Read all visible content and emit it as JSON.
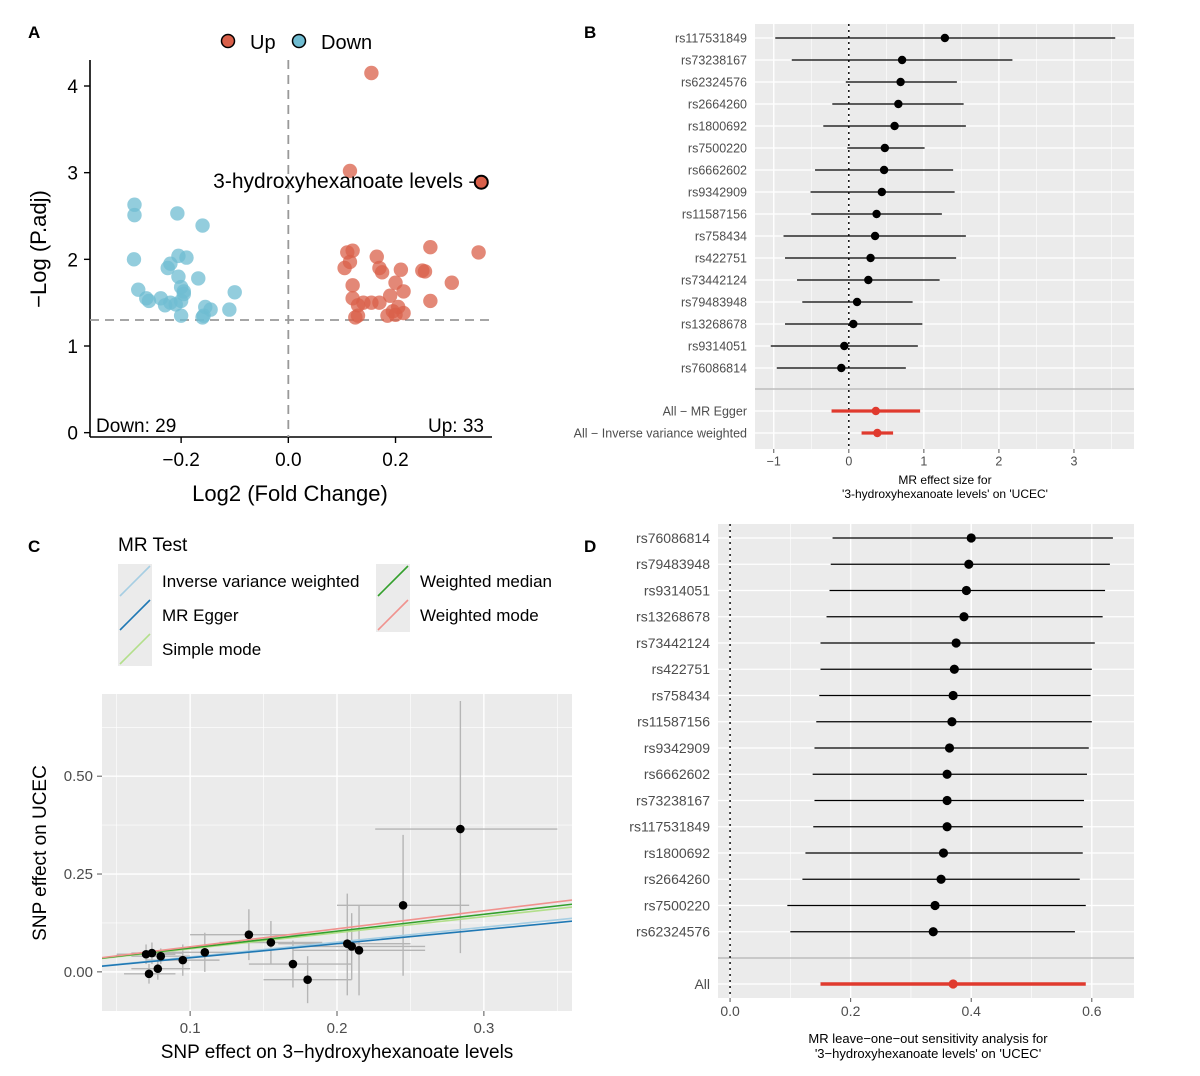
{
  "colors": {
    "up": "#d9604a",
    "down": "#6fbcd1",
    "panel_bg": "#ebebeb",
    "grid": "#ffffff",
    "point": "#000000",
    "summary": "#e03a2e",
    "axis_text": "#4d4d4d",
    "ivw": "#a6cee3",
    "egger": "#1f78b4",
    "simple_mode": "#b2df8a",
    "wmedian": "#33a02c",
    "wmode": "#f0928e",
    "errorbar": "#b5b5b5"
  },
  "panels": {
    "A": {
      "tag": "A",
      "legend": [
        {
          "label": "Up",
          "color_key": "up"
        },
        {
          "label": "Down",
          "color_key": "down"
        }
      ],
      "down_count": "Down: 29",
      "up_count": "Up: 33",
      "highlight_label": "3-hydroxyhexanoate levels"
    },
    "B": {
      "tag": "B"
    },
    "C": {
      "tag": "C",
      "legend_title": "MR Test",
      "legend": [
        {
          "label": "Inverse variance weighted",
          "color_key": "ivw"
        },
        {
          "label": "MR Egger",
          "color_key": "egger"
        },
        {
          "label": "Simple mode",
          "color_key": "simple_mode"
        },
        {
          "label": "Weighted median",
          "color_key": "wmedian"
        },
        {
          "label": "Weighted mode",
          "color_key": "wmode"
        }
      ]
    },
    "D": {
      "tag": "D"
    }
  },
  "chart_data": [
    {
      "panel": "A",
      "type": "scatter",
      "xlabel": "Log2 (Fold Change)",
      "ylabel": "−Log (P.adj)",
      "xlim": [
        -0.37,
        0.38
      ],
      "ylim": [
        -0.05,
        4.3
      ],
      "xticks": [
        {
          "v": -0.2,
          "label": "−0.2"
        },
        {
          "v": 0.0,
          "label": "0.0"
        },
        {
          "v": 0.2,
          "label": "0.2"
        }
      ],
      "yticks": [
        {
          "v": 0,
          "label": "0"
        },
        {
          "v": 1,
          "label": "1"
        },
        {
          "v": 2,
          "label": "2"
        },
        {
          "v": 3,
          "label": "3"
        },
        {
          "v": 4,
          "label": "4"
        }
      ],
      "vline": 0.0,
      "hline": 1.3,
      "highlight": {
        "x": 0.36,
        "y": 2.89
      },
      "series": [
        {
          "name": "Up",
          "color_key": "up",
          "points": [
            [
              0.155,
              4.15
            ],
            [
              0.115,
              3.02
            ],
            [
              0.11,
              2.08
            ],
            [
              0.12,
              2.1
            ],
            [
              0.36,
              2.89
            ],
            [
              0.355,
              2.08
            ],
            [
              0.265,
              2.14
            ],
            [
              0.105,
              1.9
            ],
            [
              0.115,
              1.97
            ],
            [
              0.165,
              2.03
            ],
            [
              0.17,
              1.9
            ],
            [
              0.21,
              1.88
            ],
            [
              0.175,
              1.85
            ],
            [
              0.25,
              1.87
            ],
            [
              0.255,
              1.86
            ],
            [
              0.305,
              1.73
            ],
            [
              0.12,
              1.7
            ],
            [
              0.2,
              1.73
            ],
            [
              0.215,
              1.63
            ],
            [
              0.12,
              1.55
            ],
            [
              0.19,
              1.58
            ],
            [
              0.14,
              1.5
            ],
            [
              0.155,
              1.5
            ],
            [
              0.13,
              1.47
            ],
            [
              0.17,
              1.5
            ],
            [
              0.205,
              1.45
            ],
            [
              0.265,
              1.52
            ],
            [
              0.13,
              1.35
            ],
            [
              0.125,
              1.33
            ],
            [
              0.185,
              1.35
            ],
            [
              0.195,
              1.4
            ],
            [
              0.215,
              1.38
            ],
            [
              0.2,
              1.36
            ]
          ]
        },
        {
          "name": "Down",
          "color_key": "down",
          "points": [
            [
              -0.287,
              2.63
            ],
            [
              -0.287,
              2.51
            ],
            [
              -0.207,
              2.53
            ],
            [
              -0.16,
              2.39
            ],
            [
              -0.288,
              2.0
            ],
            [
              -0.205,
              2.04
            ],
            [
              -0.19,
              2.02
            ],
            [
              -0.22,
              1.95
            ],
            [
              -0.225,
              1.9
            ],
            [
              -0.205,
              1.8
            ],
            [
              -0.168,
              1.78
            ],
            [
              -0.2,
              1.68
            ],
            [
              -0.28,
              1.65
            ],
            [
              -0.195,
              1.6
            ],
            [
              -0.195,
              1.63
            ],
            [
              -0.1,
              1.62
            ],
            [
              -0.265,
              1.55
            ],
            [
              -0.26,
              1.52
            ],
            [
              -0.238,
              1.55
            ],
            [
              -0.22,
              1.5
            ],
            [
              -0.23,
              1.47
            ],
            [
              -0.21,
              1.48
            ],
            [
              -0.2,
              1.52
            ],
            [
              -0.155,
              1.45
            ],
            [
              -0.145,
              1.42
            ],
            [
              -0.11,
              1.42
            ],
            [
              -0.2,
              1.35
            ],
            [
              -0.16,
              1.33
            ],
            [
              -0.158,
              1.35
            ]
          ]
        }
      ]
    },
    {
      "panel": "B",
      "type": "forest",
      "xlabel": "MR effect size for\n'3-hydroxyhexanoate levels' on 'UCEC'",
      "xlim": [
        -1.25,
        3.8
      ],
      "xticks": [
        {
          "v": -1,
          "label": "−1"
        },
        {
          "v": 0,
          "label": "0"
        },
        {
          "v": 1,
          "label": "1"
        },
        {
          "v": 2,
          "label": "2"
        },
        {
          "v": 3,
          "label": "3"
        }
      ],
      "refline": 0,
      "rows": [
        {
          "label": "rs117531849",
          "est": 1.28,
          "lo": -0.98,
          "hi": 3.55
        },
        {
          "label": "rs73238167",
          "est": 0.71,
          "lo": -0.76,
          "hi": 2.18
        },
        {
          "label": "rs62324576",
          "est": 0.69,
          "lo": -0.04,
          "hi": 1.44
        },
        {
          "label": "rs2664260",
          "est": 0.66,
          "lo": -0.22,
          "hi": 1.53
        },
        {
          "label": "rs1800692",
          "est": 0.61,
          "lo": -0.34,
          "hi": 1.56
        },
        {
          "label": "rs7500220",
          "est": 0.48,
          "lo": -0.02,
          "hi": 1.01
        },
        {
          "label": "rs6662602",
          "est": 0.47,
          "lo": -0.45,
          "hi": 1.39
        },
        {
          "label": "rs9342909",
          "est": 0.44,
          "lo": -0.51,
          "hi": 1.41
        },
        {
          "label": "rs11587156",
          "est": 0.37,
          "lo": -0.5,
          "hi": 1.24
        },
        {
          "label": "rs758434",
          "est": 0.35,
          "lo": -0.87,
          "hi": 1.56
        },
        {
          "label": "rs422751",
          "est": 0.29,
          "lo": -0.85,
          "hi": 1.43
        },
        {
          "label": "rs73442124",
          "est": 0.26,
          "lo": -0.69,
          "hi": 1.21
        },
        {
          "label": "rs79483948",
          "est": 0.11,
          "lo": -0.62,
          "hi": 0.85
        },
        {
          "label": "rs13268678",
          "est": 0.06,
          "lo": -0.85,
          "hi": 0.98
        },
        {
          "label": "rs9314051",
          "est": -0.06,
          "lo": -1.04,
          "hi": 0.92
        },
        {
          "label": "rs76086814",
          "est": -0.1,
          "lo": -0.96,
          "hi": 0.76
        }
      ],
      "summary": [
        {
          "label": "All − MR Egger",
          "est": 0.36,
          "lo": -0.23,
          "hi": 0.95
        },
        {
          "label": "All − Inverse variance weighted",
          "est": 0.38,
          "lo": 0.17,
          "hi": 0.59
        }
      ]
    },
    {
      "panel": "C",
      "type": "scatter",
      "xlabel": "SNP effect on 3−hydroxyhexanoate levels",
      "ylabel": "SNP effect on UCEC",
      "xlim": [
        0.04,
        0.36
      ],
      "ylim": [
        -0.1,
        0.71
      ],
      "xticks": [
        {
          "v": 0.1,
          "label": "0.1"
        },
        {
          "v": 0.2,
          "label": "0.2"
        },
        {
          "v": 0.3,
          "label": "0.3"
        }
      ],
      "yticks": [
        {
          "v": 0.0,
          "label": "0.00"
        },
        {
          "v": 0.25,
          "label": "0.25"
        },
        {
          "v": 0.5,
          "label": "0.50"
        }
      ],
      "points": [
        {
          "x": 0.284,
          "y": 0.365,
          "xlo": 0.226,
          "xhi": 0.35,
          "ylo": 0.048,
          "yhi": 0.692
        },
        {
          "x": 0.245,
          "y": 0.17,
          "xlo": 0.2,
          "xhi": 0.29,
          "ylo": -0.01,
          "yhi": 0.35
        },
        {
          "x": 0.14,
          "y": 0.095,
          "xlo": 0.1,
          "xhi": 0.18,
          "ylo": 0.03,
          "yhi": 0.16
        },
        {
          "x": 0.155,
          "y": 0.075,
          "xlo": 0.12,
          "xhi": 0.19,
          "ylo": 0.02,
          "yhi": 0.13
        },
        {
          "x": 0.207,
          "y": 0.072,
          "xlo": 0.16,
          "xhi": 0.25,
          "ylo": -0.06,
          "yhi": 0.2
        },
        {
          "x": 0.21,
          "y": 0.065,
          "xlo": 0.17,
          "xhi": 0.26,
          "ylo": -0.02,
          "yhi": 0.15
        },
        {
          "x": 0.215,
          "y": 0.055,
          "xlo": 0.17,
          "xhi": 0.26,
          "ylo": -0.06,
          "yhi": 0.17
        },
        {
          "x": 0.17,
          "y": 0.02,
          "xlo": 0.14,
          "xhi": 0.21,
          "ylo": -0.04,
          "yhi": 0.08
        },
        {
          "x": 0.18,
          "y": -0.02,
          "xlo": 0.15,
          "xhi": 0.21,
          "ylo": -0.08,
          "yhi": 0.04
        },
        {
          "x": 0.11,
          "y": 0.05,
          "xlo": 0.08,
          "xhi": 0.14,
          "ylo": 0.0,
          "yhi": 0.1
        },
        {
          "x": 0.095,
          "y": 0.03,
          "xlo": 0.07,
          "xhi": 0.12,
          "ylo": -0.01,
          "yhi": 0.07
        },
        {
          "x": 0.07,
          "y": 0.045,
          "xlo": 0.05,
          "xhi": 0.09,
          "ylo": 0.02,
          "yhi": 0.07
        },
        {
          "x": 0.074,
          "y": 0.048,
          "xlo": 0.06,
          "xhi": 0.095,
          "ylo": 0.02,
          "yhi": 0.075
        },
        {
          "x": 0.08,
          "y": 0.04,
          "xlo": 0.06,
          "xhi": 0.1,
          "ylo": 0.02,
          "yhi": 0.06
        },
        {
          "x": 0.072,
          "y": -0.005,
          "xlo": 0.055,
          "xhi": 0.09,
          "ylo": -0.03,
          "yhi": 0.02
        },
        {
          "x": 0.078,
          "y": 0.008,
          "xlo": 0.06,
          "xhi": 0.1,
          "ylo": -0.02,
          "yhi": 0.035
        }
      ],
      "lines": [
        {
          "method": "Inverse variance weighted",
          "color_key": "ivw",
          "slope": 0.38,
          "intercept": 0.0
        },
        {
          "method": "MR Egger",
          "color_key": "egger",
          "slope": 0.36,
          "intercept": 0.0
        },
        {
          "method": "Simple mode",
          "color_key": "simple_mode",
          "slope": 0.41,
          "intercept": 0.018
        },
        {
          "method": "Weighted median",
          "color_key": "wmedian",
          "slope": 0.43,
          "intercept": 0.018
        },
        {
          "method": "Weighted mode",
          "color_key": "wmode",
          "slope": 0.46,
          "intercept": 0.018
        }
      ]
    },
    {
      "panel": "D",
      "type": "forest",
      "xlabel": "MR leave−one−out sensitivity analysis for\n'3−hydroxyhexanoate levels' on 'UCEC'",
      "xlim": [
        -0.02,
        0.67
      ],
      "xticks": [
        {
          "v": 0.0,
          "label": "0.0"
        },
        {
          "v": 0.2,
          "label": "0.2"
        },
        {
          "v": 0.4,
          "label": "0.4"
        },
        {
          "v": 0.6,
          "label": "0.6"
        }
      ],
      "refline": 0,
      "rows": [
        {
          "label": "rs76086814",
          "est": 0.4,
          "lo": 0.17,
          "hi": 0.635
        },
        {
          "label": "rs79483948",
          "est": 0.396,
          "lo": 0.167,
          "hi": 0.63
        },
        {
          "label": "rs9314051",
          "est": 0.392,
          "lo": 0.165,
          "hi": 0.622
        },
        {
          "label": "rs13268678",
          "est": 0.388,
          "lo": 0.16,
          "hi": 0.618
        },
        {
          "label": "rs73442124",
          "est": 0.375,
          "lo": 0.15,
          "hi": 0.605
        },
        {
          "label": "rs422751",
          "est": 0.372,
          "lo": 0.15,
          "hi": 0.6
        },
        {
          "label": "rs758434",
          "est": 0.37,
          "lo": 0.148,
          "hi": 0.598
        },
        {
          "label": "rs11587156",
          "est": 0.368,
          "lo": 0.143,
          "hi": 0.6
        },
        {
          "label": "rs9342909",
          "est": 0.364,
          "lo": 0.14,
          "hi": 0.595
        },
        {
          "label": "rs6662602",
          "est": 0.36,
          "lo": 0.137,
          "hi": 0.592
        },
        {
          "label": "rs73238167",
          "est": 0.36,
          "lo": 0.14,
          "hi": 0.587
        },
        {
          "label": "rs117531849",
          "est": 0.36,
          "lo": 0.138,
          "hi": 0.585
        },
        {
          "label": "rs1800692",
          "est": 0.354,
          "lo": 0.125,
          "hi": 0.585
        },
        {
          "label": "rs2664260",
          "est": 0.35,
          "lo": 0.12,
          "hi": 0.58
        },
        {
          "label": "rs7500220",
          "est": 0.34,
          "lo": 0.095,
          "hi": 0.59
        },
        {
          "label": "rs62324576",
          "est": 0.337,
          "lo": 0.1,
          "hi": 0.572
        }
      ],
      "summary": [
        {
          "label": "All",
          "est": 0.37,
          "lo": 0.15,
          "hi": 0.59
        }
      ]
    }
  ]
}
